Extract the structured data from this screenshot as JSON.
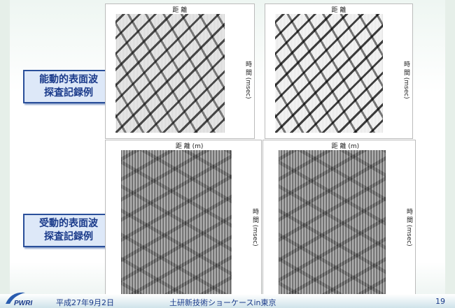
{
  "labels": [
    [
      "能動的表面波",
      "探査記録例"
    ],
    [
      "受動的表面波",
      "探査記録例"
    ]
  ],
  "figures": {
    "distance": "距 離",
    "distance_m": "距 離 (m)",
    "time": "時 間 (msec)"
  },
  "footer": {
    "date": "平成27年9月2日",
    "event": "土研新技術ショーケースin東京",
    "page": "19"
  },
  "logo": "PWRI"
}
